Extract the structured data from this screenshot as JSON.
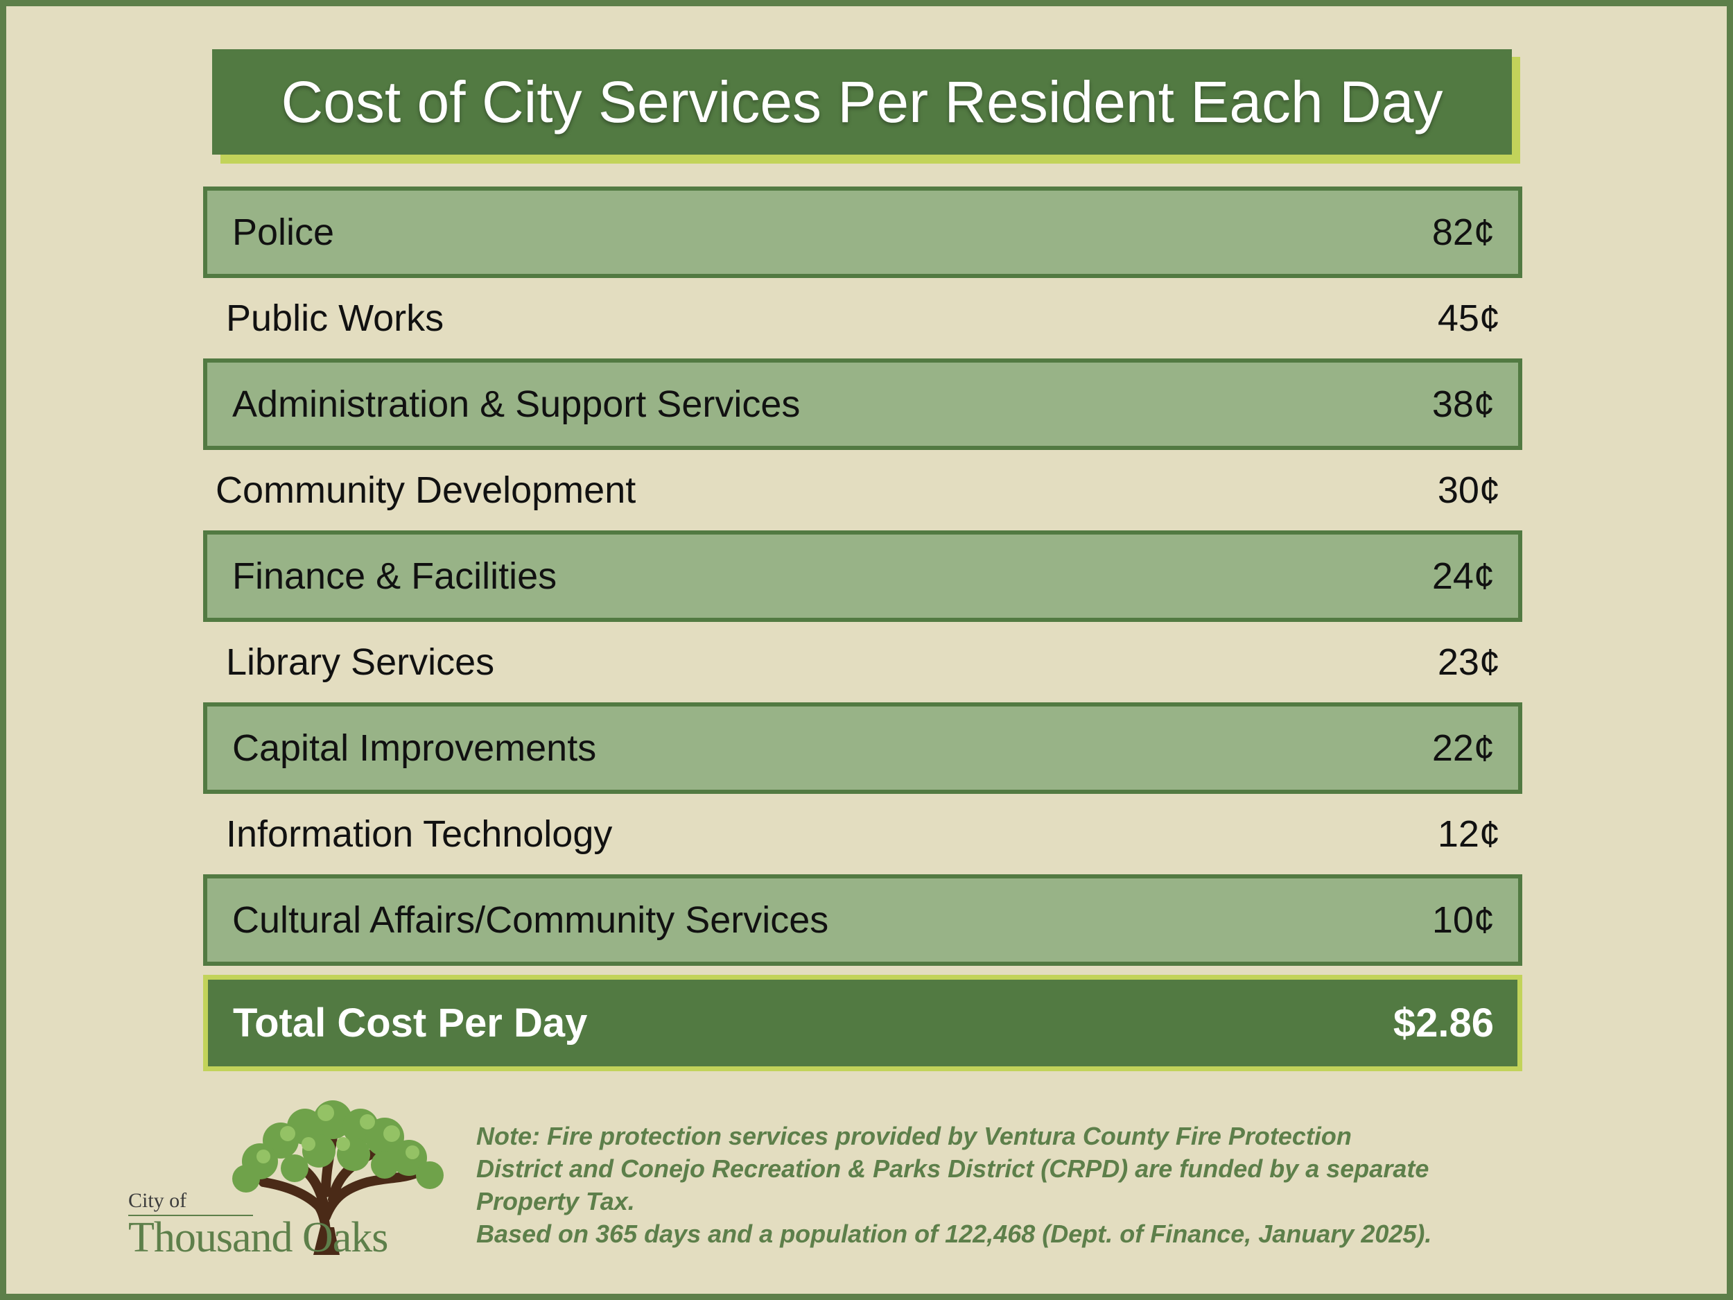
{
  "title": "Cost of City Services Per Resident Each Day",
  "services": [
    {
      "label": "Police",
      "value": "82¢",
      "shaded": true
    },
    {
      "label": "Public Works",
      "value": "45¢",
      "shaded": false
    },
    {
      "label": "Administration & Support Services",
      "value": "38¢",
      "shaded": true
    },
    {
      "label": "Community Development",
      "value": "30¢",
      "shaded": false
    },
    {
      "label": "Finance & Facilities",
      "value": "24¢",
      "shaded": true
    },
    {
      "label": "Library Services",
      "value": "23¢",
      "shaded": false
    },
    {
      "label": "Capital Improvements",
      "value": "22¢",
      "shaded": true
    },
    {
      "label": "Information Technology",
      "value": "12¢",
      "shaded": false
    },
    {
      "label": "Cultural Affairs/Community Services",
      "value": "10¢",
      "shaded": true
    }
  ],
  "total": {
    "label": "Total Cost Per Day",
    "value": "$2.86"
  },
  "logo": {
    "city": "City of",
    "name": "Thousand Oaks"
  },
  "note": {
    "lines": [
      "Note: Fire protection services provided by Ventura County Fire Protection",
      "District and Conejo Recreation & Parks District (CRPD) are funded by a separate",
      "Property Tax.",
      "Based on 365 days and a population of 122,468 (Dept. of Finance, January 2025)."
    ]
  },
  "colors": {
    "background": "#e3ddc0",
    "dark_green": "#527a42",
    "row_green": "#98b387",
    "accent_lime": "#c2d35a"
  }
}
